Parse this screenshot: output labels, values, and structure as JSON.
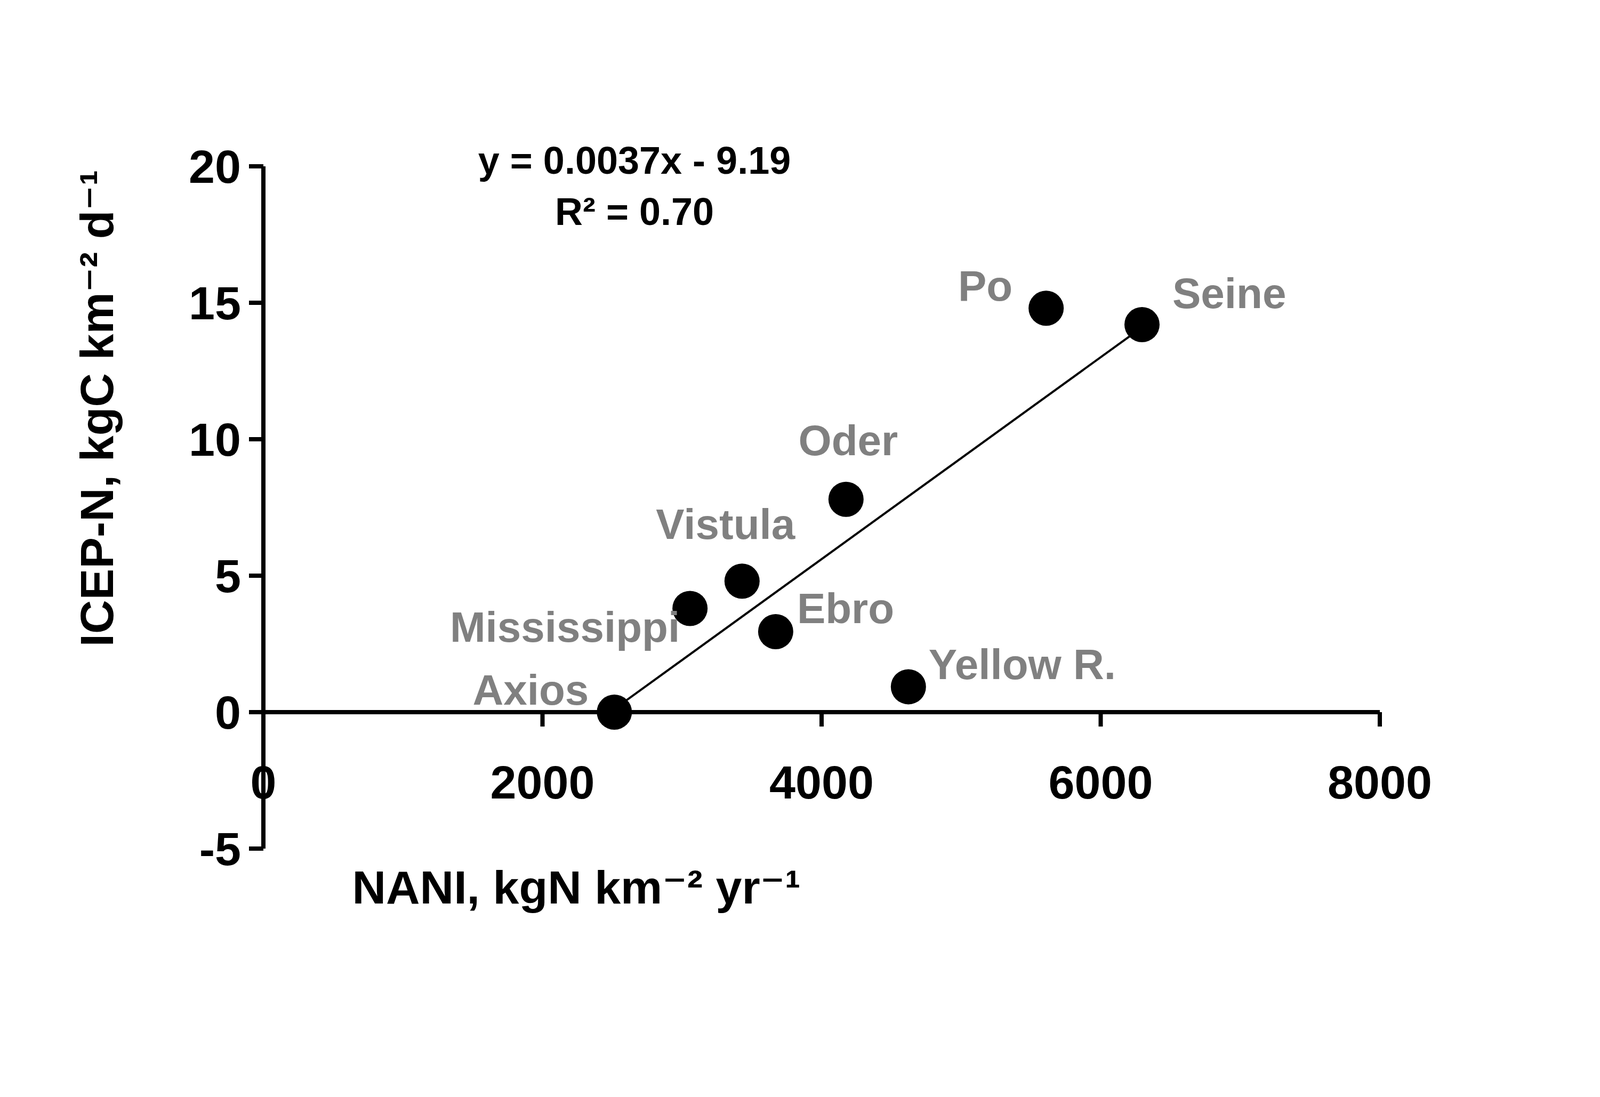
{
  "chart_data": {
    "type": "scatter",
    "x_label": "NANI, kgN km⁻² yr⁻¹",
    "y_label": "ICEP-N, kgC km⁻² d⁻¹",
    "annotations": [
      "y = 0.0037x - 9.19",
      "R² = 0.70"
    ],
    "labels": [
      "Axios",
      "Mississippi",
      "Vistula",
      "Ebro",
      "Oder",
      "Yellow R.",
      "Po",
      "Seine"
    ],
    "x": [
      2515,
      3057,
      3430,
      3671,
      4175,
      4622,
      5609,
      6296
    ],
    "values": [
      0,
      3.8,
      4.8,
      2.95,
      7.8,
      0.93,
      14.8,
      14.2
    ],
    "color": "#000000",
    "label_color": "#808080",
    "marker": "circle",
    "trendline": {
      "x": [
        2484,
        6296
      ],
      "y": [
        0,
        14.1
      ]
    },
    "xlim": [
      0,
      8000
    ],
    "ylim": [
      -5,
      20
    ],
    "xticks": [
      0,
      2000,
      4000,
      6000,
      8000
    ],
    "yticks": [
      -5,
      0,
      5,
      10,
      15,
      20
    ]
  }
}
